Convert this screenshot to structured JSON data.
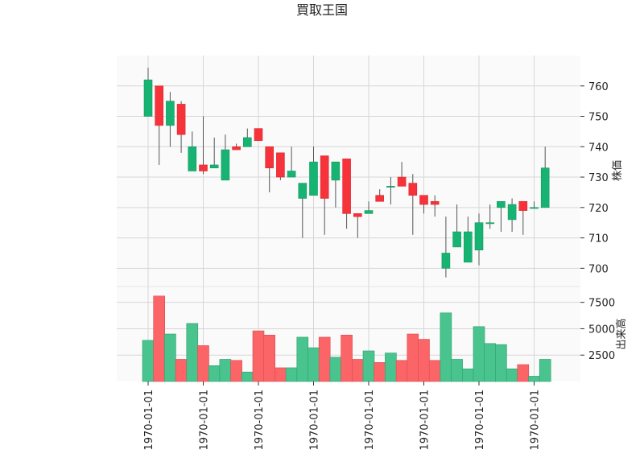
{
  "chart_data": {
    "type": "candlestick",
    "title": "買取王国",
    "price_panel": {
      "ylabel": "株価",
      "ylim": [
        694,
        770
      ],
      "yticks": [
        700,
        710,
        720,
        730,
        740,
        750,
        760
      ],
      "grid": true
    },
    "volume_panel": {
      "ylabel": "出来高",
      "ylim": [
        0,
        9000
      ],
      "yticks": [
        2500,
        5000,
        7500
      ],
      "grid": true
    },
    "xticks": [
      {
        "index": 0,
        "label": "1970-01-01"
      },
      {
        "index": 5,
        "label": "1970-01-01"
      },
      {
        "index": 10,
        "label": "1970-01-01"
      },
      {
        "index": 15,
        "label": "1970-01-01"
      },
      {
        "index": 20,
        "label": "1970-01-01"
      },
      {
        "index": 25,
        "label": "1970-01-01"
      },
      {
        "index": 30,
        "label": "1970-01-01"
      },
      {
        "index": 35,
        "label": "1970-01-01"
      }
    ],
    "colors": {
      "up": "#17b373",
      "down": "#f6323a",
      "wick": "#555555",
      "vol_up": "#49c48e",
      "vol_down": "#fb6567"
    },
    "candles": [
      {
        "open": 750,
        "high": 766,
        "low": 750,
        "close": 762,
        "volume": 3900
      },
      {
        "open": 760,
        "high": 760,
        "low": 734,
        "close": 747,
        "volume": 8100
      },
      {
        "open": 747,
        "high": 758,
        "low": 740,
        "close": 755,
        "volume": 4500
      },
      {
        "open": 754,
        "high": 755,
        "low": 738,
        "close": 744,
        "volume": 2100
      },
      {
        "open": 732,
        "high": 745,
        "low": 732,
        "close": 740,
        "volume": 5500
      },
      {
        "open": 734,
        "high": 750,
        "low": 731,
        "close": 732,
        "volume": 3400
      },
      {
        "open": 733,
        "high": 743,
        "low": 733,
        "close": 734,
        "volume": 1500
      },
      {
        "open": 729,
        "high": 744,
        "low": 729,
        "close": 739,
        "volume": 2100
      },
      {
        "open": 740,
        "high": 741,
        "low": 739,
        "close": 739,
        "volume": 2000
      },
      {
        "open": 740,
        "high": 746,
        "low": 740,
        "close": 743,
        "volume": 900
      },
      {
        "open": 746,
        "high": 746,
        "low": 742,
        "close": 742,
        "volume": 4800
      },
      {
        "open": 740,
        "high": 740,
        "low": 725,
        "close": 733,
        "volume": 4400
      },
      {
        "open": 738,
        "high": 738,
        "low": 729,
        "close": 730,
        "volume": 1300
      },
      {
        "open": 730,
        "high": 740,
        "low": 730,
        "close": 732,
        "volume": 1300
      },
      {
        "open": 723,
        "high": 728,
        "low": 710,
        "close": 728,
        "volume": 4200
      },
      {
        "open": 724,
        "high": 740,
        "low": 724,
        "close": 735,
        "volume": 3200
      },
      {
        "open": 737,
        "high": 737,
        "low": 711,
        "close": 723,
        "volume": 4200
      },
      {
        "open": 729,
        "high": 735,
        "low": 720,
        "close": 735,
        "volume": 2300
      },
      {
        "open": 736,
        "high": 736,
        "low": 713,
        "close": 718,
        "volume": 4400
      },
      {
        "open": 718,
        "high": 718,
        "low": 710,
        "close": 717,
        "volume": 2100
      },
      {
        "open": 718,
        "high": 722,
        "low": 718,
        "close": 719,
        "volume": 2900
      },
      {
        "open": 724,
        "high": 726,
        "low": 722,
        "close": 722,
        "volume": 1800
      },
      {
        "open": 727,
        "high": 730,
        "low": 721,
        "close": 727,
        "volume": 2700
      },
      {
        "open": 730,
        "high": 735,
        "low": 727,
        "close": 727,
        "volume": 2000
      },
      {
        "open": 728,
        "high": 731,
        "low": 711,
        "close": 724,
        "volume": 4500
      },
      {
        "open": 724,
        "high": 724,
        "low": 718,
        "close": 721,
        "volume": 4000
      },
      {
        "open": 722,
        "high": 724,
        "low": 717,
        "close": 721,
        "volume": 2000
      },
      {
        "open": 700,
        "high": 717,
        "low": 697,
        "close": 705,
        "volume": 6500
      },
      {
        "open": 707,
        "high": 721,
        "low": 707,
        "close": 712,
        "volume": 2100
      },
      {
        "open": 702,
        "high": 717,
        "low": 702,
        "close": 712,
        "volume": 1200
      },
      {
        "open": 706,
        "high": 718,
        "low": 701,
        "close": 715,
        "volume": 5200
      },
      {
        "open": 715,
        "high": 721,
        "low": 713,
        "close": 715,
        "volume": 3600
      },
      {
        "open": 720,
        "high": 722,
        "low": 712,
        "close": 722,
        "volume": 3500
      },
      {
        "open": 716,
        "high": 723,
        "low": 712,
        "close": 721,
        "volume": 1200
      },
      {
        "open": 722,
        "high": 722,
        "low": 711,
        "close": 719,
        "volume": 1600
      },
      {
        "open": 720,
        "high": 722,
        "low": 720,
        "close": 720,
        "volume": 500
      },
      {
        "open": 720,
        "high": 740,
        "low": 720,
        "close": 733,
        "volume": 2100
      }
    ]
  }
}
